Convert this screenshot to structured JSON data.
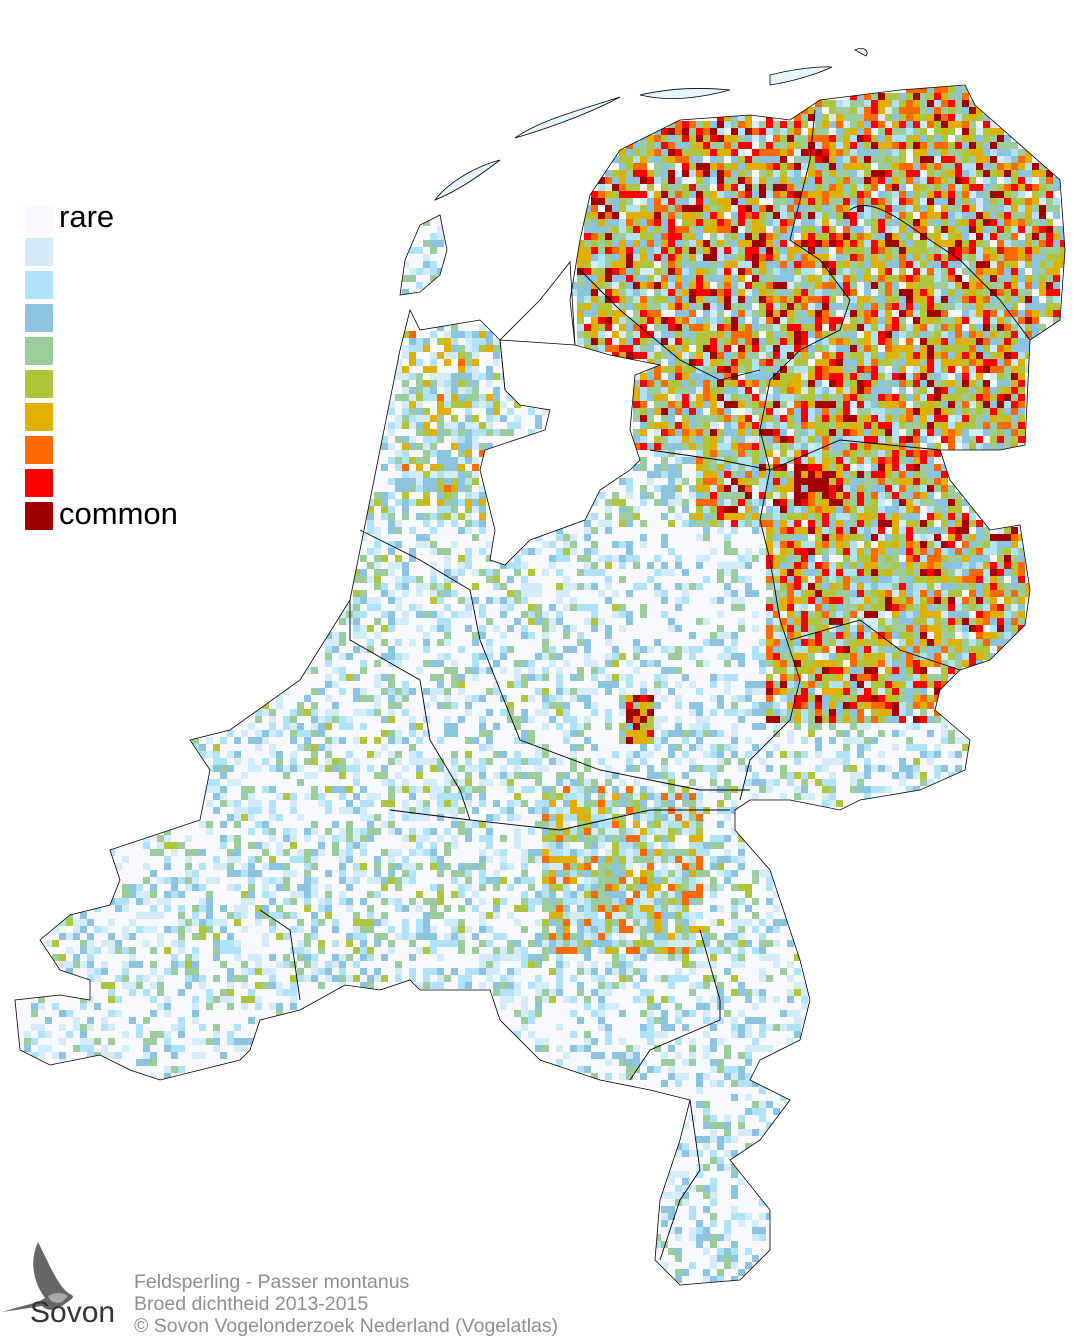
{
  "legend": {
    "label_low": "rare",
    "label_high": "common",
    "colors": [
      "#f8f8ff",
      "#d4ecfa",
      "#b0e2fa",
      "#8cc4e0",
      "#9ccc9c",
      "#b0c43c",
      "#e0b000",
      "#ff6a00",
      "#ff0000",
      "#a00000"
    ]
  },
  "map": {
    "subject": "Feldsperling - Passer montanus",
    "border_color": "#000000"
  },
  "credits": {
    "line1": "Feldsperling - Passer montanus",
    "line2": "Broed dichtheid 2013-2015",
    "line3": "© Sovon Vogelonderzoek Nederland (Vogelatlas)"
  },
  "logo": {
    "text": "Sovon",
    "icon": "swallow-icon"
  }
}
